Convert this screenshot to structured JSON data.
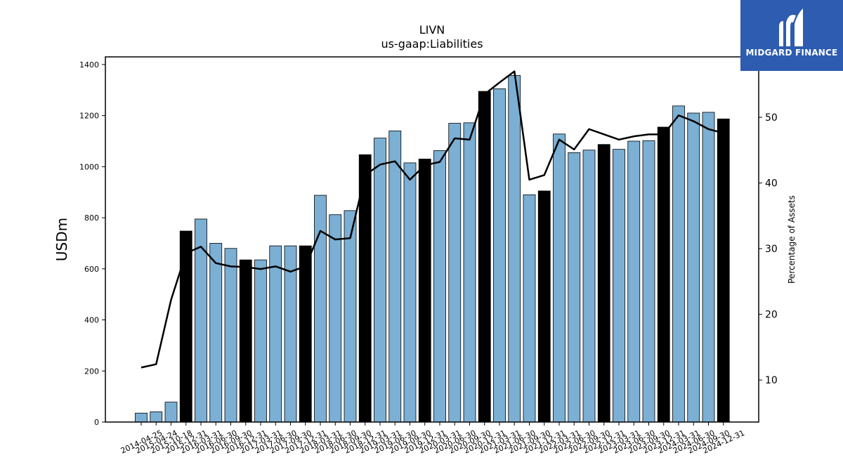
{
  "logo": {
    "text": "MIDGARD FINANCE",
    "icon": "midgard-m-icon",
    "bg_color": "#2d5cb0"
  },
  "chart_data": {
    "type": "bar",
    "title": "LIVN",
    "subtitle": "us-gaap:Liabilities",
    "ylabel": "USDm",
    "y2label": "Percentage of Assets",
    "ylim": [
      0,
      1430
    ],
    "y2lim": [
      3.6,
      59.2
    ],
    "yticks": [
      0,
      200,
      400,
      600,
      800,
      1000,
      1200,
      1400
    ],
    "y2ticks": [
      10,
      20,
      30,
      40,
      50
    ],
    "bar_color": "#7bafd4",
    "highlight_color": "#000000",
    "line_color": "#000000",
    "grid": false,
    "categories": [
      "2014-04-25",
      "2015-04-24",
      "2015-10-18",
      "2015-12-31",
      "2016-03-31",
      "2016-06-30",
      "2016-09-30",
      "2016-12-31",
      "2017-03-31",
      "2017-06-30",
      "2017-09-30",
      "2017-12-31",
      "2018-03-31",
      "2018-06-30",
      "2018-09-30",
      "2018-12-31",
      "2019-03-31",
      "2019-06-30",
      "2019-09-30",
      "2019-12-31",
      "2020-03-31",
      "2020-06-30",
      "2020-09-30",
      "2020-12-31",
      "2021-03-31",
      "2021-06-30",
      "2021-09-30",
      "2021-12-31",
      "2022-03-31",
      "2022-06-30",
      "2022-09-30",
      "2022-12-31",
      "2023-03-31",
      "2023-06-30",
      "2023-09-30",
      "2023-12-31",
      "2024-03-31",
      "2024-06-30",
      "2024-09-30",
      "2024-12-31"
    ],
    "series": [
      {
        "kind": "bar",
        "values": [
          35,
          40,
          78,
          748,
          795,
          700,
          680,
          635,
          635,
          690,
          690,
          690,
          888,
          812,
          828,
          1047,
          1112,
          1140,
          1015,
          1030,
          1063,
          1170,
          1172,
          1295,
          1305,
          1357,
          890,
          905,
          1128,
          1055,
          1065,
          1087,
          1068,
          1100,
          1102,
          1155,
          1238,
          1210,
          1213,
          1187
        ],
        "highlighted": [
          false,
          false,
          false,
          true,
          false,
          false,
          false,
          true,
          false,
          false,
          false,
          true,
          false,
          false,
          false,
          true,
          false,
          false,
          false,
          true,
          false,
          false,
          false,
          true,
          false,
          false,
          false,
          true,
          false,
          false,
          false,
          true,
          false,
          false,
          false,
          true,
          false,
          false,
          false,
          true
        ]
      },
      {
        "kind": "line",
        "axis": "right",
        "values": [
          11.9,
          12.4,
          22.2,
          29.3,
          30.3,
          27.8,
          27.3,
          27.2,
          26.9,
          27.3,
          26.5,
          27.3,
          32.7,
          31.4,
          31.6,
          41.2,
          42.8,
          43.3,
          40.5,
          42.7,
          43.2,
          46.8,
          46.6,
          53.5,
          55.3,
          57.0,
          40.5,
          41.2,
          46.6,
          45.1,
          48.2,
          47.4,
          46.6,
          47.1,
          47.4,
          47.4,
          50.3,
          49.4,
          48.2,
          47.6
        ]
      }
    ]
  }
}
